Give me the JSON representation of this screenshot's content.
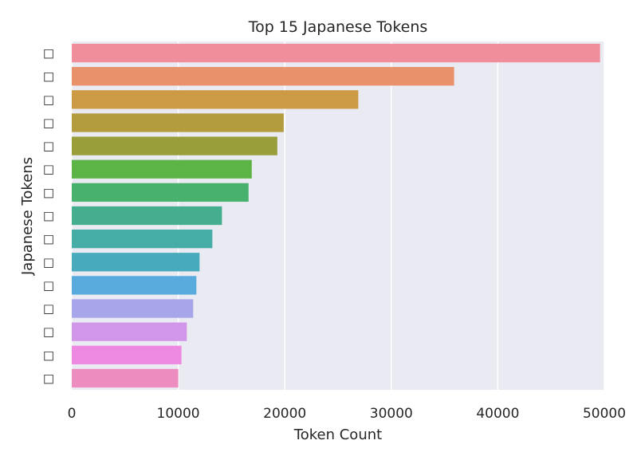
{
  "chart_data": {
    "type": "bar",
    "orientation": "horizontal",
    "title": "Top 15 Japanese Tokens",
    "xlabel": "Token Count",
    "ylabel": "Japanese Tokens",
    "categories": [
      "□",
      "□",
      "□",
      "□",
      "□",
      "□",
      "□",
      "□",
      "□",
      "□",
      "□",
      "□",
      "□",
      "□",
      "□"
    ],
    "values": [
      49600,
      35900,
      26900,
      19900,
      19300,
      16900,
      16600,
      14100,
      13200,
      12000,
      11700,
      11400,
      10800,
      10300,
      10000
    ],
    "xlim": [
      0,
      50000
    ],
    "xticks": [
      0,
      10000,
      20000,
      30000,
      40000,
      50000
    ],
    "xtick_labels": [
      "0",
      "10000",
      "20000",
      "30000",
      "40000",
      "50000"
    ],
    "grid": true,
    "background": "#eaeaf2",
    "colors": [
      "#f08f9b",
      "#e9916a",
      "#cc9a45",
      "#b29c3e",
      "#999e3b",
      "#5db446",
      "#48b16d",
      "#45ae8f",
      "#45aca6",
      "#47abbd",
      "#5aabdd",
      "#a8a6eb",
      "#d296e9",
      "#ed89e1",
      "#ed8cbf"
    ]
  }
}
